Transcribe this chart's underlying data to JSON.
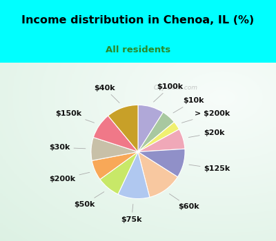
{
  "title": "Income distribution in Chenoa, IL (%)",
  "subtitle": "All residents",
  "title_color": "#000000",
  "subtitle_color": "#2a8a2a",
  "bg_top": "#00FFFF",
  "labels": [
    "$100k",
    "$10k",
    "> $200k",
    "$20k",
    "$125k",
    "$60k",
    "$75k",
    "$50k",
    "$200k",
    "$30k",
    "$150k",
    "$40k"
  ],
  "values": [
    9,
    5,
    3,
    7,
    10,
    12,
    11,
    8,
    7,
    8,
    9,
    11
  ],
  "colors": [
    "#b0a8d8",
    "#a8c8a0",
    "#f0f070",
    "#f0a8b8",
    "#9090c8",
    "#f8c8a0",
    "#b0c8f0",
    "#c8e868",
    "#f8a858",
    "#c8c0a8",
    "#f07888",
    "#c8a028"
  ],
  "label_fontsize": 8,
  "startangle": 90,
  "watermark": "City-Data.com"
}
